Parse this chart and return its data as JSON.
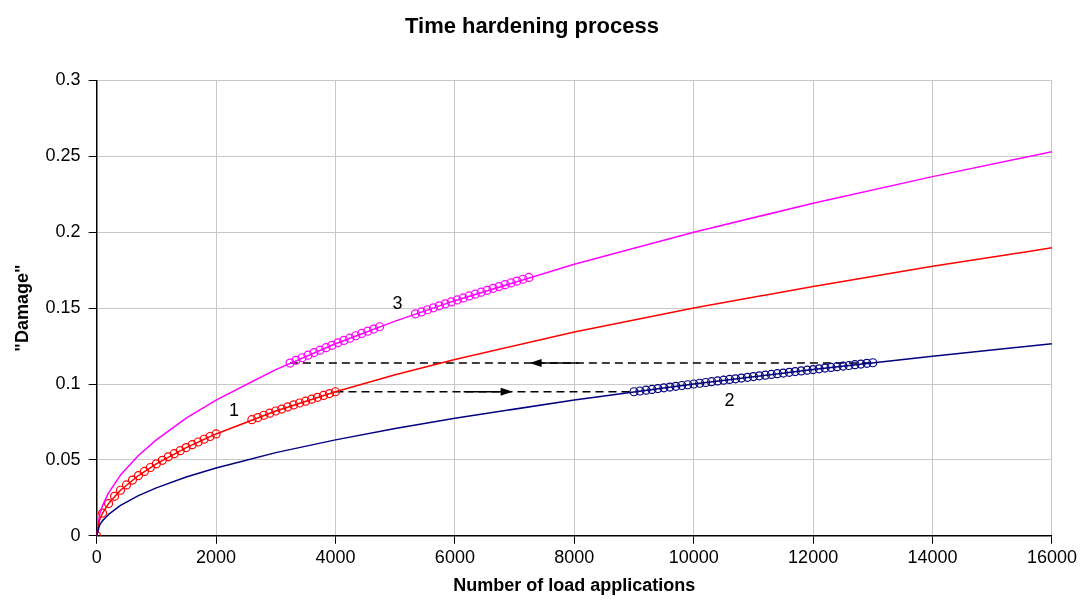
{
  "chart_data": {
    "type": "line",
    "title": "Time hardening process",
    "xlabel": "Number of load applications",
    "ylabel": "\"Damage\"",
    "xlim": [
      0,
      16000
    ],
    "xticks": [
      0,
      2000,
      4000,
      6000,
      8000,
      10000,
      12000,
      14000,
      16000
    ],
    "ylim": [
      0,
      0.3
    ],
    "yticks": [
      0,
      0.05,
      0.1,
      0.15,
      0.2,
      0.25,
      0.3
    ],
    "grid": true,
    "legend": false,
    "series": [
      {
        "type": "line",
        "color": "#000080",
        "marker": "none",
        "x": [
          0,
          50,
          100,
          200,
          400,
          700,
          1000,
          1500,
          2000,
          3000,
          4000,
          5000,
          6000,
          8000,
          10000,
          12000,
          14000,
          16000
        ],
        "values": [
          0,
          0.0071,
          0.01,
          0.0141,
          0.02,
          0.0265,
          0.0316,
          0.0387,
          0.0447,
          0.0548,
          0.0632,
          0.0707,
          0.0775,
          0.0894,
          0.1,
          0.1095,
          0.1183,
          0.1265
        ]
      },
      {
        "type": "line",
        "color": "#ff0000",
        "marker": "none",
        "x": [
          0,
          50,
          100,
          200,
          400,
          700,
          1000,
          1500,
          2000,
          3000,
          4000,
          5000,
          6000,
          8000,
          10000,
          12000,
          14000,
          16000
        ],
        "values": [
          0,
          0.0106,
          0.015,
          0.0212,
          0.03,
          0.0397,
          0.0474,
          0.0581,
          0.0671,
          0.0822,
          0.0949,
          0.1061,
          0.1162,
          0.1342,
          0.15,
          0.1643,
          0.1775,
          0.1897
        ]
      },
      {
        "type": "line",
        "color": "#ff00ff",
        "marker": "none",
        "x": [
          0,
          50,
          100,
          200,
          400,
          700,
          1000,
          1500,
          2000,
          3000,
          4000,
          5000,
          6000,
          8000,
          10000,
          12000,
          14000,
          16000
        ],
        "values": [
          0,
          0.0141,
          0.02,
          0.0283,
          0.04,
          0.0529,
          0.0632,
          0.0775,
          0.0894,
          0.1095,
          0.1265,
          0.1414,
          0.1549,
          0.1789,
          0.2,
          0.2191,
          0.2366,
          0.253
        ]
      },
      {
        "type": "scatter",
        "color": "#ff0000",
        "marker": "circle",
        "x": [
          0,
          100,
          200,
          300,
          400,
          500,
          600,
          700,
          800,
          900,
          1000,
          1100,
          1200,
          1300,
          1400,
          1500,
          1600,
          1700,
          1800,
          1900,
          2000,
          2600,
          2700,
          2800,
          2900,
          3000,
          3100,
          3200,
          3300,
          3400,
          3500,
          3600,
          3700,
          3800,
          3900,
          4000
        ],
        "values": [
          0,
          0.015,
          0.0212,
          0.026,
          0.03,
          0.0335,
          0.0367,
          0.0397,
          0.0424,
          0.045,
          0.0474,
          0.0497,
          0.052,
          0.0541,
          0.0561,
          0.0581,
          0.06,
          0.0618,
          0.0636,
          0.0654,
          0.0671,
          0.0765,
          0.0779,
          0.0794,
          0.0808,
          0.0822,
          0.0835,
          0.0849,
          0.0862,
          0.0875,
          0.0887,
          0.09,
          0.0912,
          0.0925,
          0.0937,
          0.0949
        ]
      },
      {
        "type": "scatter",
        "color": "#000080",
        "marker": "circle",
        "x": [
          9000,
          9100,
          9200,
          9300,
          9400,
          9500,
          9600,
          9700,
          9800,
          9900,
          10000,
          10100,
          10200,
          10300,
          10400,
          10500,
          10600,
          10700,
          10800,
          10900,
          11000,
          11100,
          11200,
          11300,
          11400,
          11500,
          11600,
          11700,
          11800,
          11900,
          12000,
          12100,
          12200,
          12300,
          12400,
          12500,
          12600,
          12700,
          12800,
          12900,
          13000
        ],
        "values": [
          0.0949,
          0.0954,
          0.0959,
          0.0964,
          0.097,
          0.0975,
          0.098,
          0.0985,
          0.099,
          0.0995,
          0.1,
          0.1005,
          0.101,
          0.1015,
          0.102,
          0.1025,
          0.103,
          0.1034,
          0.1039,
          0.1044,
          0.1049,
          0.1054,
          0.1058,
          0.1063,
          0.1068,
          0.1072,
          0.1077,
          0.1082,
          0.1086,
          0.1091,
          0.1095,
          0.11,
          0.1105,
          0.1109,
          0.1114,
          0.1118,
          0.1122,
          0.1127,
          0.1131,
          0.1136,
          0.114
        ]
      },
      {
        "type": "scatter",
        "color": "#ff00ff",
        "marker": "circle",
        "x": [
          3240,
          3340,
          3440,
          3540,
          3640,
          3740,
          3840,
          3940,
          4040,
          4140,
          4240,
          4340,
          4440,
          4540,
          4640,
          4740,
          5340,
          5440,
          5540,
          5640,
          5740,
          5840,
          5940,
          6040,
          6140,
          6240,
          6340,
          6440,
          6540,
          6640,
          6740,
          6840,
          6940,
          7040,
          7140,
          7240
        ],
        "values": [
          0.1138,
          0.1156,
          0.1173,
          0.119,
          0.1207,
          0.1223,
          0.1239,
          0.1255,
          0.1271,
          0.1287,
          0.1302,
          0.1318,
          0.1333,
          0.1348,
          0.1362,
          0.1377,
          0.1462,
          0.1475,
          0.1489,
          0.1502,
          0.1515,
          0.1528,
          0.1541,
          0.1554,
          0.1567,
          0.158,
          0.1592,
          0.1605,
          0.1617,
          0.163,
          0.1642,
          0.1654,
          0.1666,
          0.1678,
          0.169,
          0.1702
        ]
      },
      {
        "type": "line",
        "color": "#000000",
        "marker": "none",
        "line_style": "dashed",
        "x": [
          4000,
          9000
        ],
        "values": [
          0.0949,
          0.0949
        ]
      },
      {
        "type": "line",
        "color": "#000000",
        "marker": "none",
        "line_style": "dashed",
        "x": [
          12950,
          3240
        ],
        "values": [
          0.1138,
          0.1138
        ]
      }
    ],
    "annotations": [
      {
        "text": "1",
        "x": 2300,
        "y": 0.0719
      },
      {
        "text": "3",
        "x": 5040,
        "y": 0.142
      },
      {
        "text": "2",
        "x": 10600,
        "y": 0.103
      }
    ]
  }
}
